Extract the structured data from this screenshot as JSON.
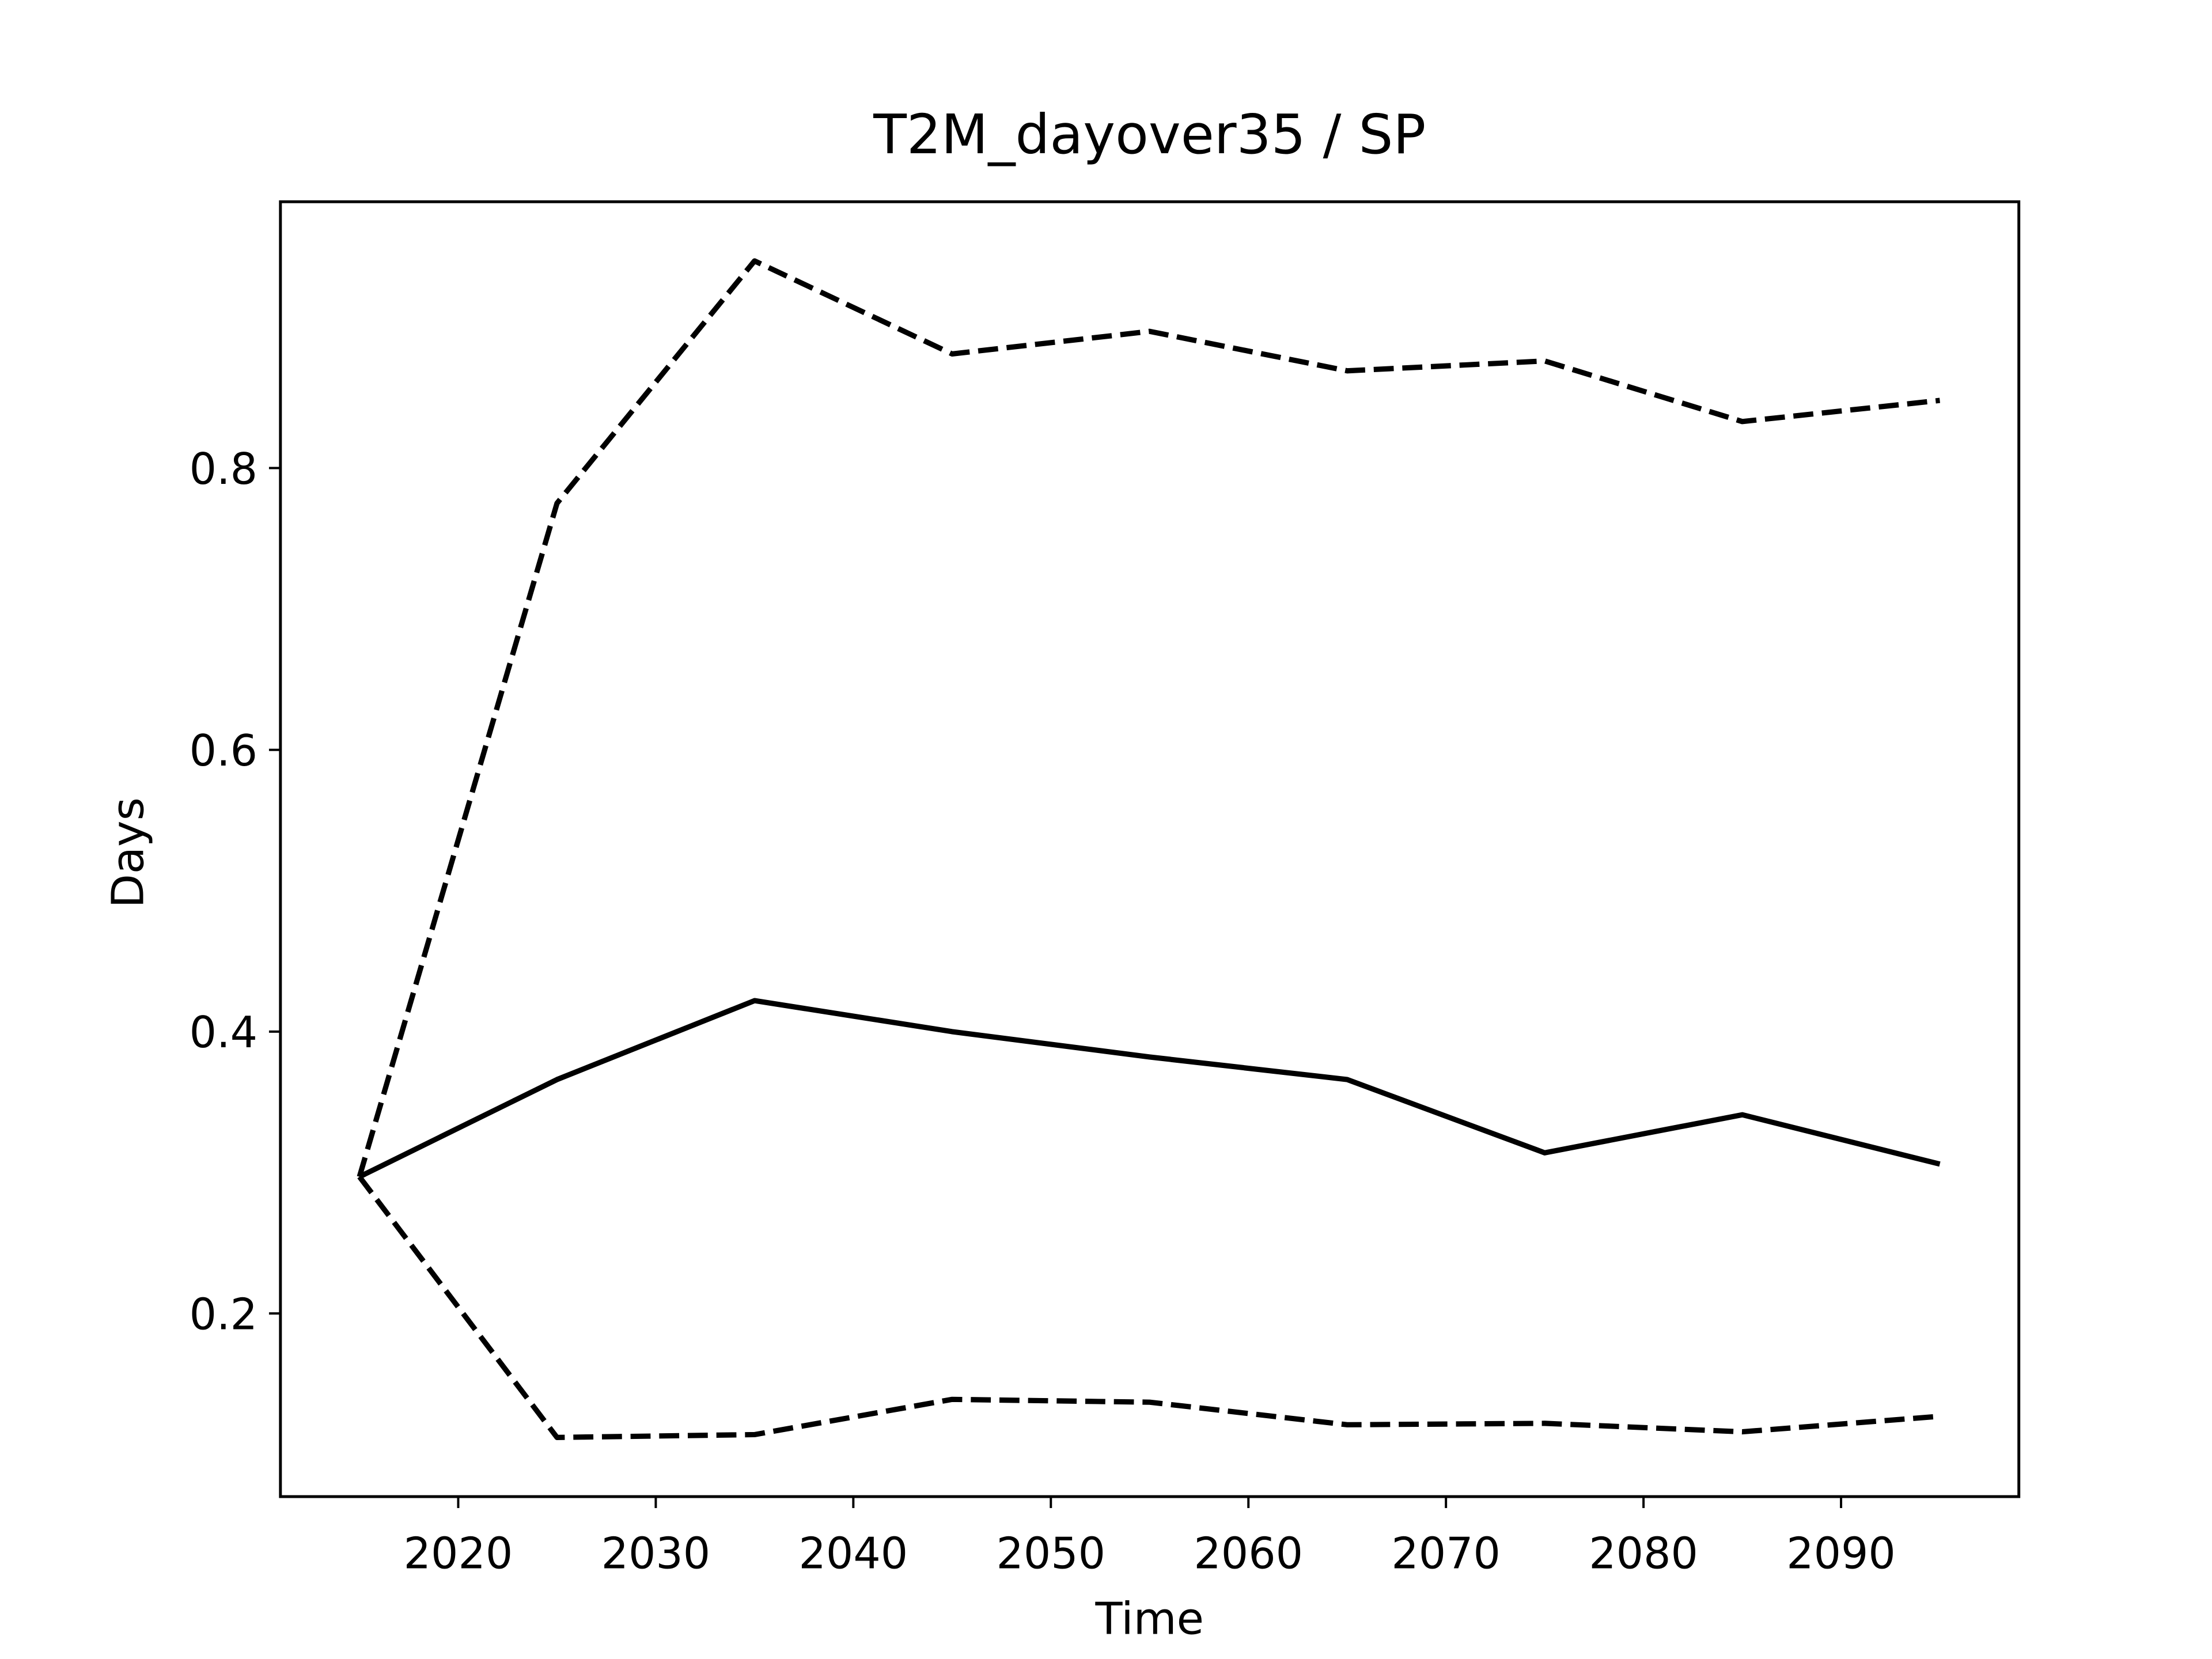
{
  "chart_data": {
    "type": "line",
    "title": "T2M_dayover35 / SP",
    "xlabel": "Time",
    "ylabel": "Days",
    "x": [
      2015,
      2025,
      2035,
      2045,
      2055,
      2065,
      2075,
      2085,
      2095
    ],
    "series": [
      {
        "color": "#000000",
        "linestyle": "dashed",
        "values": [
          0.297,
          0.775,
          0.947,
          0.881,
          0.897,
          0.869,
          0.876,
          0.833,
          0.848
        ]
      },
      {
        "color": "#000000",
        "linestyle": "solid",
        "values": [
          0.297,
          0.366,
          0.422,
          0.4,
          0.382,
          0.366,
          0.314,
          0.341,
          0.306
        ]
      },
      {
        "color": "#000000",
        "linestyle": "dashed",
        "values": [
          0.297,
          0.112,
          0.114,
          0.139,
          0.137,
          0.121,
          0.122,
          0.116,
          0.127
        ]
      }
    ],
    "xlim": [
      2011,
      2099
    ],
    "xticks": [
      2020,
      2030,
      2040,
      2050,
      2060,
      2070,
      2080,
      2090
    ],
    "ylim": [
      0.07,
      0.989
    ],
    "yticks": [
      0.2,
      0.4,
      0.6,
      0.8
    ],
    "grid": false
  }
}
